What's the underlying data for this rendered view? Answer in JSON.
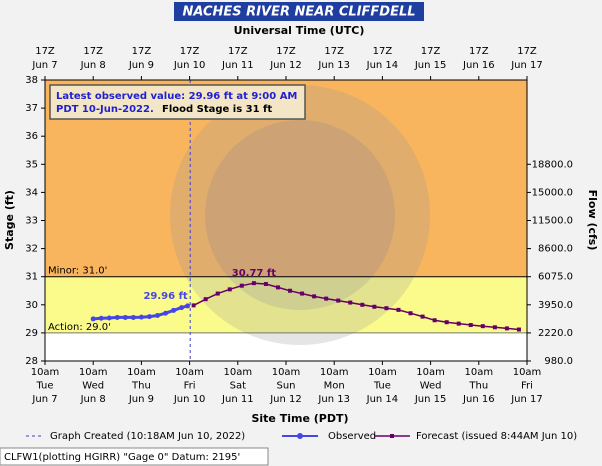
{
  "chart_data": {
    "type": "line",
    "title": "NACHES RIVER NEAR CLIFFDELL",
    "top_axis_label": "Universal Time (UTC)",
    "x_label": "Site Time (PDT)",
    "y_label": "Stage (ft)",
    "y2_label": "Flow (cfs)",
    "xlim": [
      "Jun 7 10:00",
      "Jun 17 10:00"
    ],
    "xticks": [
      {
        "value": "Jun 7 10:00",
        "label": [
          "10am",
          "Tue",
          "Jun 7"
        ]
      },
      {
        "value": "Jun 8 10:00",
        "label": [
          "10am",
          "Wed",
          "Jun 8"
        ]
      },
      {
        "value": "Jun 9 10:00",
        "label": [
          "10am",
          "Thu",
          "Jun 9"
        ]
      },
      {
        "value": "Jun 10 10:00",
        "label": [
          "10am",
          "Fri",
          "Jun 10"
        ]
      },
      {
        "value": "Jun 11 10:00",
        "label": [
          "10am",
          "Sat",
          "Jun 11"
        ]
      },
      {
        "value": "Jun 12 10:00",
        "label": [
          "10am",
          "Sun",
          "Jun 12"
        ]
      },
      {
        "value": "Jun 13 10:00",
        "label": [
          "10am",
          "Mon",
          "Jun 13"
        ]
      },
      {
        "value": "Jun 14 10:00",
        "label": [
          "10am",
          "Tue",
          "Jun 14"
        ]
      },
      {
        "value": "Jun 15 10:00",
        "label": [
          "10am",
          "Wed",
          "Jun 15"
        ]
      },
      {
        "value": "Jun 16 10:00",
        "label": [
          "10am",
          "Thu",
          "Jun 16"
        ]
      },
      {
        "value": "Jun 17 10:00",
        "label": [
          "10am",
          "Fri",
          "Jun 17"
        ]
      }
    ],
    "x2ticks": [
      {
        "value": "Jun 7 10:00",
        "label": [
          "17Z",
          "Jun 7"
        ]
      },
      {
        "value": "Jun 8 10:00",
        "label": [
          "17Z",
          "Jun 8"
        ]
      },
      {
        "value": "Jun 9 10:00",
        "label": [
          "17Z",
          "Jun 9"
        ]
      },
      {
        "value": "Jun 10 10:00",
        "label": [
          "17Z",
          "Jun 10"
        ]
      },
      {
        "value": "Jun 11 10:00",
        "label": [
          "17Z",
          "Jun 11"
        ]
      },
      {
        "value": "Jun 12 10:00",
        "label": [
          "17Z",
          "Jun 12"
        ]
      },
      {
        "value": "Jun 13 10:00",
        "label": [
          "17Z",
          "Jun 13"
        ]
      },
      {
        "value": "Jun 14 10:00",
        "label": [
          "17Z",
          "Jun 14"
        ]
      },
      {
        "value": "Jun 15 10:00",
        "label": [
          "17Z",
          "Jun 15"
        ]
      },
      {
        "value": "Jun 16 10:00",
        "label": [
          "17Z",
          "Jun 16"
        ]
      },
      {
        "value": "Jun 17 10:00",
        "label": [
          "17Z",
          "Jun 17"
        ]
      }
    ],
    "ylim": [
      28,
      38
    ],
    "yticks": [
      28,
      29,
      30,
      31,
      32,
      33,
      34,
      35,
      36,
      37,
      38
    ],
    "y2ticks": [
      {
        "value": 980,
        "label": "980.0",
        "stage": 28
      },
      {
        "value": 2220,
        "label": "2220.0",
        "stage": 29
      },
      {
        "value": 3950,
        "label": "3950.0",
        "stage": 30
      },
      {
        "value": 6075,
        "label": "6075.0",
        "stage": 31
      },
      {
        "value": 8600,
        "label": "8600.0",
        "stage": 32
      },
      {
        "value": 11500,
        "label": "11500.0",
        "stage": 33
      },
      {
        "value": 15000,
        "label": "15000.0",
        "stage": 34
      },
      {
        "value": 18800,
        "label": "18800.0",
        "stage": 35
      }
    ],
    "flood_levels": [
      {
        "label": "Minor: 31.0'",
        "value": 31,
        "color": "#f9b55e"
      },
      {
        "label": "Action: 29.0'",
        "value": 29,
        "color": "#fbfb8c"
      }
    ],
    "reference_line": {
      "label": "Graph Created (10:18AM Jun 10, 2022)",
      "x": "Jun 10 10:18",
      "color": "#4040c0"
    },
    "annotation": {
      "lines": [
        "Latest observed value: 29.96 ft at 9:00 AM",
        "PDT 10-Jun-2022."
      ],
      "note": "Flood Stage is 31 ft"
    },
    "series": [
      {
        "name": "Observed",
        "color": "#4646e6",
        "x": [
          "Jun 8 10:00",
          "Jun 8 14:00",
          "Jun 8 18:00",
          "Jun 8 22:00",
          "Jun 9 2:00",
          "Jun 9 6:00",
          "Jun 9 10:00",
          "Jun 9 14:00",
          "Jun 9 18:00",
          "Jun 9 22:00",
          "Jun 10 2:00",
          "Jun 10 6:00",
          "Jun 10 9:00"
        ],
        "values": [
          29.5,
          29.52,
          29.53,
          29.55,
          29.55,
          29.55,
          29.56,
          29.58,
          29.62,
          29.7,
          29.8,
          29.9,
          29.96
        ],
        "value_labels": [
          null,
          null,
          null,
          null,
          null,
          null,
          null,
          null,
          null,
          null,
          null,
          null,
          "29.96 ft"
        ]
      },
      {
        "name": "Forecast (issued 8:44AM Jun 10)",
        "color": "#660066",
        "x": [
          "Jun 10 12:00",
          "Jun 10 18:00",
          "Jun 11 0:00",
          "Jun 11 6:00",
          "Jun 11 12:00",
          "Jun 11 18:00",
          "Jun 12 0:00",
          "Jun 12 6:00",
          "Jun 12 12:00",
          "Jun 12 18:00",
          "Jun 13 0:00",
          "Jun 13 6:00",
          "Jun 13 12:00",
          "Jun 13 18:00",
          "Jun 14 0:00",
          "Jun 14 6:00",
          "Jun 14 12:00",
          "Jun 14 18:00",
          "Jun 15 0:00",
          "Jun 15 6:00",
          "Jun 15 12:00",
          "Jun 15 18:00",
          "Jun 16 0:00",
          "Jun 16 6:00",
          "Jun 16 12:00",
          "Jun 16 18:00",
          "Jun 17 0:00",
          "Jun 17 6:00"
        ],
        "values": [
          29.98,
          30.2,
          30.4,
          30.55,
          30.68,
          30.77,
          30.74,
          30.62,
          30.5,
          30.4,
          30.3,
          30.22,
          30.15,
          30.08,
          30.0,
          29.93,
          29.88,
          29.82,
          29.7,
          29.58,
          29.45,
          29.38,
          29.33,
          29.28,
          29.24,
          29.2,
          29.16,
          29.12
        ],
        "value_labels": [
          null,
          null,
          null,
          null,
          null,
          "30.77 ft",
          null,
          null,
          null,
          null,
          null,
          null,
          null,
          null,
          null,
          null,
          null,
          null,
          null,
          null,
          null,
          null,
          null,
          null,
          null,
          null,
          null,
          null
        ]
      }
    ],
    "footer": "CLFW1(plotting HGIRR) \"Gage 0\" Datum: 2195'"
  }
}
